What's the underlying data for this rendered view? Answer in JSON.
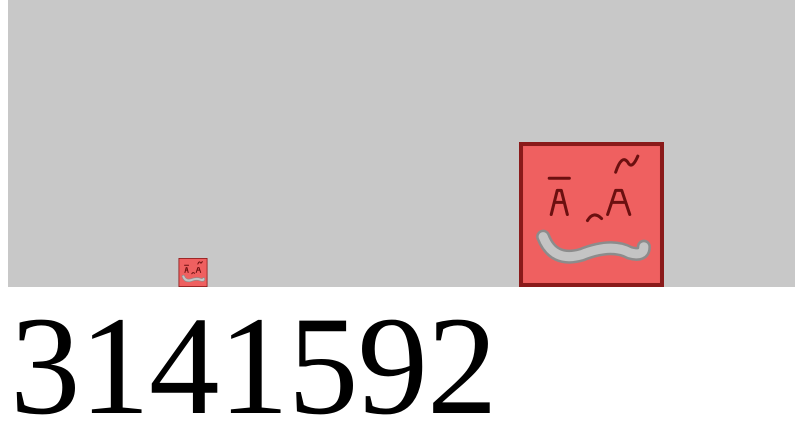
{
  "game": {
    "score": "3141592",
    "colors": {
      "background": "#ffffff",
      "stage": "#c8c8c8",
      "character_fill": "#ef6060",
      "character_border": "#8a1a1a",
      "face_lines": "#6b1010",
      "mouth": "#b8b8b8"
    },
    "characters": [
      {
        "name": "small-character",
        "icon": "red-block-face"
      },
      {
        "name": "large-character",
        "icon": "red-block-face"
      }
    ]
  }
}
